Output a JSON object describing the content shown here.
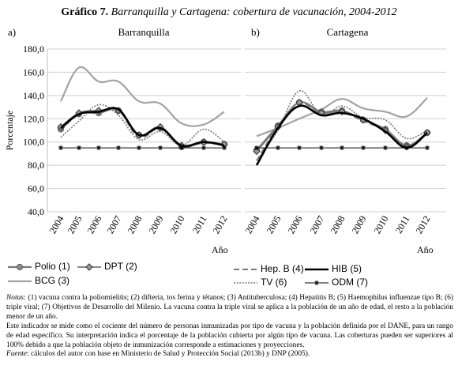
{
  "figure": {
    "label": "Gráfico 7.",
    "title": "Barranquilla y Cartagena: cobertura de vacunación, 2004-2012"
  },
  "legend": [
    {
      "key": "polio",
      "label": "Polio (1)"
    },
    {
      "key": "dpt",
      "label": "DPT (2)"
    },
    {
      "key": "bcg",
      "label": "BCG (3)"
    },
    {
      "key": "hepb",
      "label": "Hep. B (4)"
    },
    {
      "key": "hib",
      "label": "HIB (5)"
    },
    {
      "key": "tv",
      "label": "TV (6)"
    },
    {
      "key": "odm",
      "label": "ODM (7)"
    }
  ],
  "colors": {
    "gray": "#a3a3a3",
    "dark": "#7a7a7a",
    "black": "#000000",
    "grid": "#cfcfcf"
  },
  "chart_data": [
    {
      "type": "line",
      "panel": "a)",
      "title": "Barranquilla",
      "ylabel": "Porcentaje",
      "xlabel": "Año",
      "ylim": [
        40,
        180
      ],
      "yticks": [
        "40,0",
        "60,0",
        "80,0",
        "100,0",
        "120,0",
        "140,0",
        "160,0",
        "180,0"
      ],
      "categories": [
        "2004",
        "2005",
        "2006",
        "2007",
        "2008",
        "2009",
        "2010",
        "2011",
        "2012"
      ],
      "grid": true,
      "series": [
        {
          "key": "polio",
          "name": "Polio (1)",
          "values": [
            111,
            124,
            125,
            127,
            106,
            112,
            96,
            100,
            98
          ]
        },
        {
          "key": "dpt",
          "name": "DPT (2)",
          "values": [
            113,
            125,
            127,
            127,
            106,
            113,
            97,
            100,
            98
          ]
        },
        {
          "key": "bcg",
          "name": "BCG (3)",
          "values": [
            135,
            164,
            152,
            152,
            135,
            133,
            116,
            115,
            126
          ]
        },
        {
          "key": "hepb",
          "name": "Hep. B (4)",
          "values": [
            110,
            124,
            126,
            127,
            104,
            112,
            97,
            99,
            98
          ]
        },
        {
          "key": "hib",
          "name": "HIB (5)",
          "values": [
            112,
            124,
            126,
            128,
            106,
            112,
            97,
            100,
            97
          ]
        },
        {
          "key": "tv",
          "name": "TV (6)",
          "values": [
            104,
            118,
            132,
            123,
            102,
            109,
            97,
            111,
            100
          ]
        },
        {
          "key": "odm",
          "name": "ODM (7)",
          "values": [
            95,
            95,
            95,
            95,
            95,
            95,
            95,
            95,
            95
          ]
        }
      ]
    },
    {
      "type": "line",
      "panel": "b)",
      "title": "Cartagena",
      "xlabel": "Año",
      "ylim": [
        40,
        180
      ],
      "categories": [
        "2004",
        "2005",
        "2006",
        "2007",
        "2008",
        "2009",
        "2010",
        "2011",
        "2012"
      ],
      "grid": true,
      "series": [
        {
          "key": "polio",
          "name": "Polio (1)",
          "values": [
            93,
            114,
            134,
            126,
            127,
            119,
            111,
            97,
            108
          ]
        },
        {
          "key": "dpt",
          "name": "DPT (2)",
          "values": [
            92,
            113,
            134,
            125,
            126,
            119,
            110,
            96,
            108
          ]
        },
        {
          "key": "bcg",
          "name": "BCG (3)",
          "values": [
            105,
            112,
            120,
            128,
            137,
            129,
            126,
            122,
            138
          ]
        },
        {
          "key": "hepb",
          "name": "Hep. B (4)",
          "values": [
            84,
            113,
            133,
            125,
            126,
            118,
            110,
            97,
            107
          ]
        },
        {
          "key": "hib",
          "name": "HIB (5)",
          "values": [
            80,
            112,
            131,
            123,
            125,
            120,
            109,
            95,
            108
          ]
        },
        {
          "key": "tv",
          "name": "TV (6)",
          "values": [
            84,
            110,
            144,
            123,
            131,
            121,
            119,
            103,
            110
          ]
        },
        {
          "key": "odm",
          "name": "ODM (7)",
          "values": [
            95,
            95,
            95,
            95,
            95,
            95,
            95,
            95,
            95
          ]
        }
      ]
    }
  ],
  "notes": {
    "notes_label": "Notas:",
    "notes_text": " (1) vacuna contra la poliomielitis; (2) difteria, tos ferina y tétanos; (3) Antituberculosa; (4) Hepatitis B; (5) Haemophilus influenzae tipo B; (6) triple viral; (7) Objetivos de Desarrollo del Milenio. La vacuna contra la triple viral se aplica a la población de un año de edad, el resto a la población menor de un año.",
    "indicator_text": "Este indicador se mide como el cociente del número de personas inmunizadas por tipo de vacuna y la población definida por el DANE, para un rango de edad específico. Su interpretación indica el porcentaje de la población cubierta por algún tipo de vacuna. Las coberturas pueden ser superiores al 100% debido a que la población objeto de inmunización corresponde a estimaciones y proyecciones.",
    "source_label": "Fuente",
    "source_text": ": cálculos del autor con base en Ministerio de Salud y Protección Social (2013b) y DNP (2005)."
  }
}
